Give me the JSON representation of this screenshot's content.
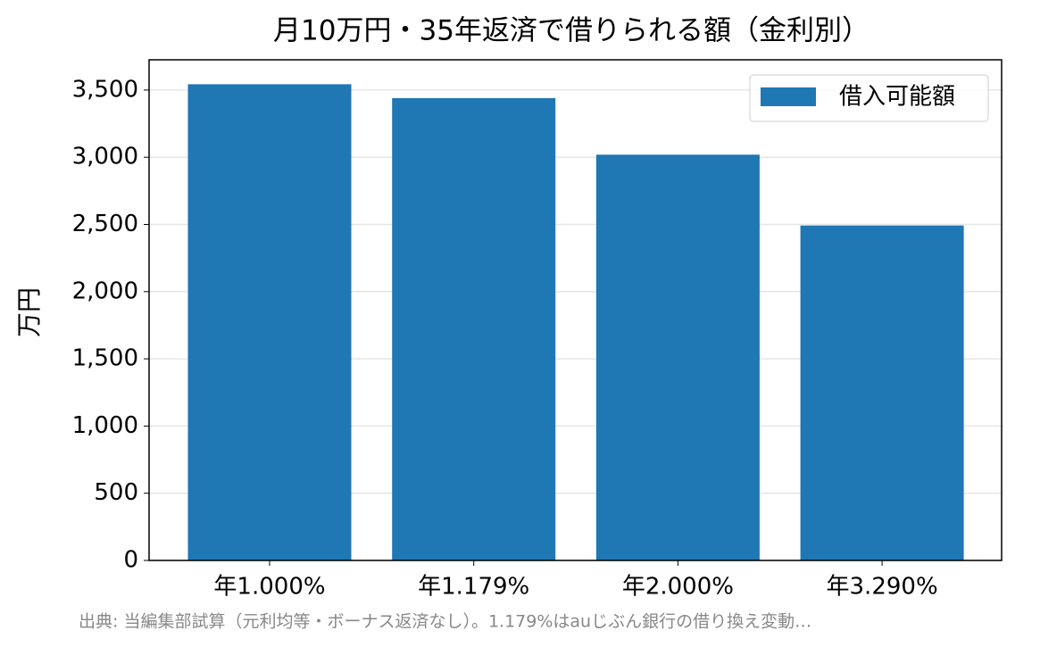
{
  "chart_data": {
    "type": "bar",
    "title": "月10万円・35年返済で借りられる額（金利別）",
    "ylabel": "万円",
    "categories": [
      "年1.000%",
      "年1.179%",
      "年2.000%",
      "年3.290%"
    ],
    "series": [
      {
        "name": "借入可能額",
        "color": "#1f77b4",
        "values": [
          3543,
          3440,
          3019,
          2492
        ]
      }
    ],
    "ylim": [
      0,
      3725
    ],
    "yticks": [
      0,
      500,
      {
        "value": 1000,
        "label": "1,000"
      },
      {
        "value": 1500,
        "label": "1,500"
      },
      {
        "value": 2000,
        "label": "2,000"
      },
      {
        "value": 2500,
        "label": "2,500"
      },
      {
        "value": 3000,
        "label": "3,000"
      },
      {
        "value": 3500,
        "label": "3,500"
      }
    ],
    "grid": true,
    "legend": "upper right",
    "note": "出典: 当編集部試算（元利均等・ボーナス返済なし）。1.179%はauじぶん銀行の借り換え変動…"
  }
}
